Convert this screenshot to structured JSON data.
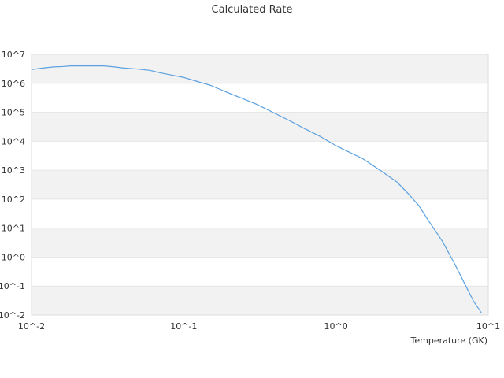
{
  "chart_data": {
    "type": "line",
    "title": "Calculated Rate",
    "xlabel": "Temperature (GK)",
    "ylabel": "",
    "x_scale": "log",
    "y_scale": "log",
    "xlim": [
      0.01,
      10
    ],
    "ylim": [
      0.01,
      10000000
    ],
    "x_ticks": [
      {
        "value": 0.01,
        "label": "10^-2"
      },
      {
        "value": 0.1,
        "label": "10^-1"
      },
      {
        "value": 1,
        "label": "10^0"
      },
      {
        "value": 10,
        "label": "10^1"
      }
    ],
    "y_ticks": [
      {
        "value": 0.01,
        "label": "10^-2"
      },
      {
        "value": 0.1,
        "label": "10^-1"
      },
      {
        "value": 1,
        "label": "10^0"
      },
      {
        "value": 10,
        "label": "10^1"
      },
      {
        "value": 100,
        "label": "10^2"
      },
      {
        "value": 1000,
        "label": "10^3"
      },
      {
        "value": 10000,
        "label": "10^4"
      },
      {
        "value": 100000,
        "label": "10^5"
      },
      {
        "value": 1000000,
        "label": "10^6"
      },
      {
        "value": 10000000,
        "label": "10^7"
      }
    ],
    "grid": "alternating horizontal bands",
    "legend": "none",
    "colors": {
      "line": "#5aa0e0",
      "band": "#f2f2f2",
      "frame": "#dddddd",
      "text": "#333333"
    },
    "series": [
      {
        "x": [
          0.01,
          0.012,
          0.014,
          0.016,
          0.018,
          0.02,
          0.025,
          0.03,
          0.035,
          0.04,
          0.05,
          0.06,
          0.07,
          0.08,
          0.1,
          0.12,
          0.15,
          0.2,
          0.25,
          0.3,
          0.4,
          0.5,
          0.6,
          0.8,
          1.0,
          1.5,
          2.0,
          2.5,
          3.0,
          3.5,
          4.0,
          5.0,
          6.0,
          7.0,
          8.0,
          9.0
        ],
        "y": [
          3000000,
          3400000,
          3700000,
          3800000,
          4000000,
          4000000,
          4000000,
          4000000,
          3700000,
          3400000,
          3100000,
          2800000,
          2300000,
          2000000,
          1600000,
          1200000,
          850000,
          450000,
          280000,
          190000,
          90000,
          50000,
          30000,
          14000,
          7000,
          2500,
          900,
          400,
          150,
          60,
          20,
          3.5,
          0.6,
          0.12,
          0.03,
          0.012
        ]
      }
    ]
  }
}
